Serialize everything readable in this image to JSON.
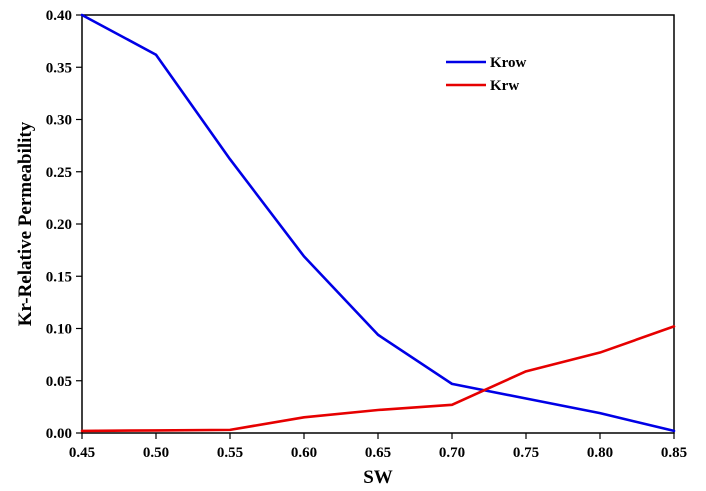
{
  "chart_data": {
    "type": "line",
    "title": "",
    "xlabel": "SW",
    "ylabel": "Kr-Relative Permeability",
    "xlim": [
      0.45,
      0.85
    ],
    "ylim": [
      0.0,
      0.4
    ],
    "x_ticks": [
      "0.45",
      "0.50",
      "0.55",
      "0.60",
      "0.65",
      "0.70",
      "0.75",
      "0.80",
      "0.85"
    ],
    "y_ticks": [
      "0.00",
      "0.05",
      "0.10",
      "0.15",
      "0.20",
      "0.25",
      "0.30",
      "0.35",
      "0.40"
    ],
    "x": [
      0.45,
      0.5,
      0.55,
      0.6,
      0.65,
      0.7,
      0.75,
      0.8,
      0.85
    ],
    "grid": false,
    "legend_position": "top-right",
    "series": [
      {
        "name": "Krow",
        "color": "#0000e6",
        "values": [
          0.4,
          0.362,
          0.262,
          0.169,
          0.094,
          0.047,
          0.033,
          0.019,
          0.002
        ]
      },
      {
        "name": "Krw",
        "color": "#e60000",
        "values": [
          0.002,
          0.0025,
          0.003,
          0.015,
          0.022,
          0.027,
          0.059,
          0.077,
          0.102
        ]
      }
    ]
  }
}
